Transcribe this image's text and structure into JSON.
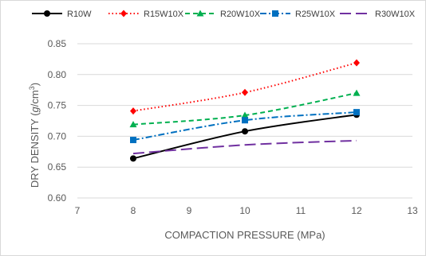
{
  "chart_data": {
    "type": "line",
    "xlabel": "COMPACTION PRESSURE (MPa)",
    "ylabel_prefix": "DRY DENSITY (",
    "ylabel_unit_g": "g",
    "ylabel_unit_cm": "/cm",
    "ylabel_unit_exp": "3",
    "ylabel_suffix": ")",
    "xlim": [
      7,
      13
    ],
    "ylim": [
      0.6,
      0.85
    ],
    "x_ticks": [
      "7",
      "8",
      "9",
      "10",
      "11",
      "12",
      "13"
    ],
    "y_ticks": [
      "0.60",
      "0.65",
      "0.70",
      "0.75",
      "0.80",
      "0.85"
    ],
    "grid": "horizontal",
    "legend_position": "top",
    "series": [
      {
        "name": "R10W",
        "color": "#000000",
        "marker": "circle",
        "dash": "solid",
        "x": [
          8,
          10,
          12
        ],
        "y": [
          0.664,
          0.708,
          0.735
        ]
      },
      {
        "name": "R15W10X",
        "color": "#ff0000",
        "marker": "diamond",
        "dash": "dot",
        "x": [
          8,
          10,
          12
        ],
        "y": [
          0.741,
          0.771,
          0.819
        ]
      },
      {
        "name": "R20W10X",
        "color": "#00b050",
        "marker": "triangle",
        "dash": "dash",
        "x": [
          8,
          10,
          12
        ],
        "y": [
          0.719,
          0.734,
          0.77
        ]
      },
      {
        "name": "R25W10X",
        "color": "#0070c0",
        "marker": "square",
        "dash": "dashdot",
        "x": [
          8,
          10,
          12
        ],
        "y": [
          0.694,
          0.726,
          0.739
        ]
      },
      {
        "name": "R30W10X",
        "color": "#7030a0",
        "marker": "none",
        "dash": "longdash",
        "x": [
          8,
          10,
          12
        ],
        "y": [
          0.672,
          0.686,
          0.693
        ]
      }
    ]
  }
}
